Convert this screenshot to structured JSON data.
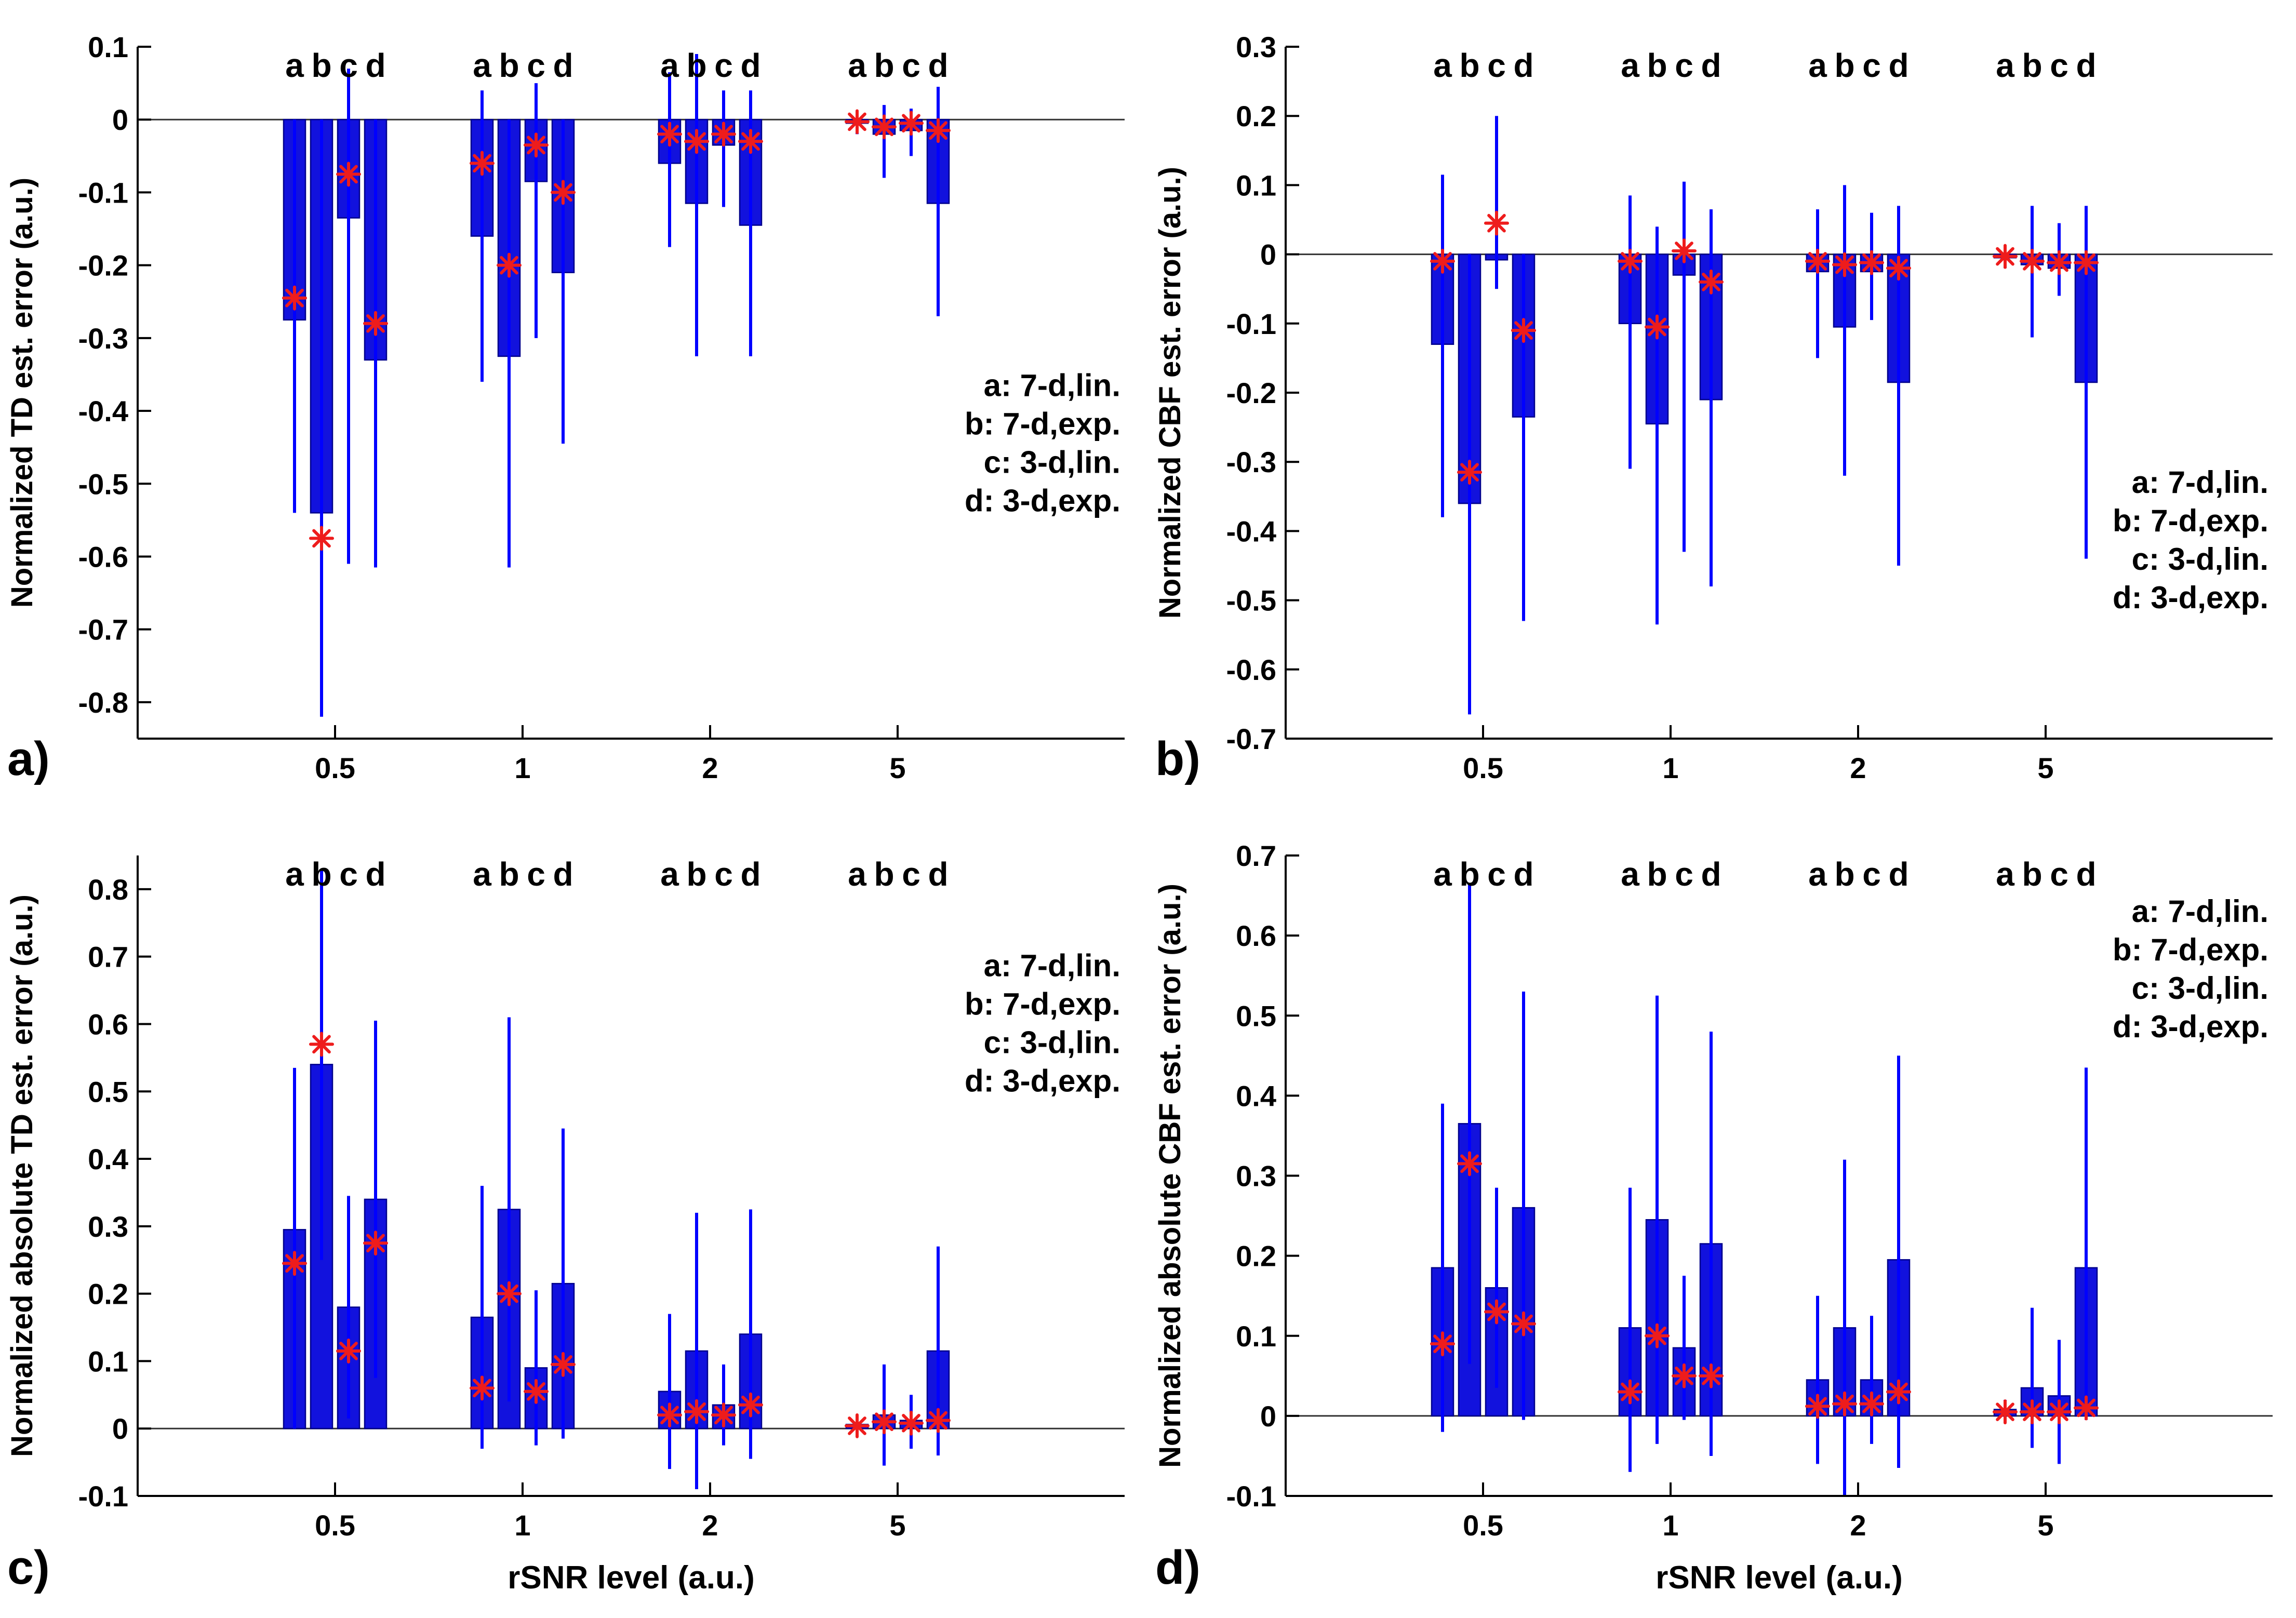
{
  "figure": {
    "background": "#ffffff"
  },
  "colors": {
    "bar_fill": "#1212dd",
    "bar_edge": "#00008b",
    "whisker": "#0000ff",
    "marker": "#ee1c1c",
    "axis": "#000000",
    "zero_line": "#333333"
  },
  "legend": {
    "items": [
      "a: 7-d,lin.",
      "b: 7-d,exp.",
      "c: 3-d,lin.",
      "d: 3-d,exp."
    ]
  },
  "chart_data": [
    {
      "panel_label": "a)",
      "type": "bar",
      "ylabel": "Normalized TD est. error (a.u.)",
      "xlabel": "",
      "ylim": [
        -0.85,
        0.1
      ],
      "yticks": [
        0.1,
        0,
        -0.1,
        -0.2,
        -0.3,
        -0.4,
        -0.5,
        -0.6,
        -0.7,
        -0.8
      ],
      "group_letters": [
        "a",
        "b",
        "c",
        "d"
      ],
      "legend_y_frac": 0.46,
      "bar_format": [
        "value",
        "whisker_low",
        "whisker_high",
        "marker"
      ],
      "groups": [
        {
          "label": "0.5",
          "bars": [
            [
              -0.275,
              -0.54,
              0.0,
              -0.245
            ],
            [
              -0.54,
              -0.82,
              0.0,
              -0.575
            ],
            [
              -0.135,
              -0.61,
              0.07,
              -0.075
            ],
            [
              -0.33,
              -0.615,
              0.0,
              -0.28
            ]
          ]
        },
        {
          "label": "1",
          "bars": [
            [
              -0.16,
              -0.36,
              0.04,
              -0.06
            ],
            [
              -0.325,
              -0.615,
              0.0,
              -0.2
            ],
            [
              -0.085,
              -0.3,
              0.05,
              -0.035
            ],
            [
              -0.21,
              -0.445,
              0.0,
              -0.1
            ]
          ]
        },
        {
          "label": "2",
          "bars": [
            [
              -0.06,
              -0.175,
              0.065,
              -0.02
            ],
            [
              -0.115,
              -0.325,
              0.09,
              -0.03
            ],
            [
              -0.035,
              -0.12,
              0.04,
              -0.02
            ],
            [
              -0.145,
              -0.325,
              0.04,
              -0.03
            ]
          ]
        },
        {
          "label": "5",
          "bars": [
            [
              -0.005,
              -0.02,
              0.008,
              -0.003
            ],
            [
              -0.02,
              -0.08,
              0.02,
              -0.01
            ],
            [
              -0.015,
              -0.05,
              0.015,
              -0.005
            ],
            [
              -0.115,
              -0.27,
              0.045,
              -0.015
            ]
          ]
        }
      ]
    },
    {
      "panel_label": "b)",
      "type": "bar",
      "ylabel": "Normalized CBF est. error (a.u.)",
      "xlabel": "",
      "ylim": [
        -0.7,
        0.3
      ],
      "yticks": [
        0.3,
        0.2,
        0.1,
        0,
        -0.1,
        -0.2,
        -0.3,
        -0.4,
        -0.5,
        -0.6,
        -0.7
      ],
      "group_letters": [
        "a",
        "b",
        "c",
        "d"
      ],
      "legend_y_frac": 0.6,
      "bar_format": [
        "value",
        "whisker_low",
        "whisker_high",
        "marker"
      ],
      "groups": [
        {
          "label": "0.5",
          "bars": [
            [
              -0.13,
              -0.38,
              0.115,
              -0.01
            ],
            [
              -0.36,
              -0.665,
              0.0,
              -0.315
            ],
            [
              -0.008,
              -0.05,
              0.2,
              0.045
            ],
            [
              -0.235,
              -0.53,
              0.0,
              -0.11
            ]
          ]
        },
        {
          "label": "1",
          "bars": [
            [
              -0.1,
              -0.31,
              0.085,
              -0.01
            ],
            [
              -0.245,
              -0.535,
              0.04,
              -0.105
            ],
            [
              -0.03,
              -0.43,
              0.105,
              0.005
            ],
            [
              -0.21,
              -0.48,
              0.065,
              -0.04
            ]
          ]
        },
        {
          "label": "2",
          "bars": [
            [
              -0.025,
              -0.15,
              0.065,
              -0.01
            ],
            [
              -0.105,
              -0.32,
              0.1,
              -0.015
            ],
            [
              -0.025,
              -0.095,
              0.06,
              -0.012
            ],
            [
              -0.185,
              -0.45,
              0.07,
              -0.02
            ]
          ]
        },
        {
          "label": "5",
          "bars": [
            [
              -0.005,
              -0.02,
              0.008,
              -0.003
            ],
            [
              -0.015,
              -0.12,
              0.07,
              -0.01
            ],
            [
              -0.02,
              -0.06,
              0.045,
              -0.012
            ],
            [
              -0.185,
              -0.44,
              0.07,
              -0.012
            ]
          ]
        }
      ]
    },
    {
      "panel_label": "c)",
      "type": "bar",
      "ylabel": "Normalized absolute TD est. error (a.u.)",
      "xlabel": "rSNR level (a.u.)",
      "ylim": [
        -0.1,
        0.85
      ],
      "yticks": [
        0.8,
        0.7,
        0.6,
        0.5,
        0.4,
        0.3,
        0.2,
        0.1,
        0,
        -0.1
      ],
      "group_letters": [
        "a",
        "b",
        "c",
        "d"
      ],
      "legend_y_frac": 0.14,
      "bar_format": [
        "value",
        "whisker_low",
        "whisker_high",
        "marker"
      ],
      "groups": [
        {
          "label": "0.5",
          "bars": [
            [
              0.295,
              0.0,
              0.535,
              0.245
            ],
            [
              0.54,
              0.25,
              0.83,
              0.57
            ],
            [
              0.18,
              0.015,
              0.345,
              0.115
            ],
            [
              0.34,
              0.075,
              0.605,
              0.275
            ]
          ]
        },
        {
          "label": "1",
          "bars": [
            [
              0.165,
              -0.03,
              0.36,
              0.06
            ],
            [
              0.325,
              0.04,
              0.61,
              0.2
            ],
            [
              0.09,
              -0.025,
              0.205,
              0.055
            ],
            [
              0.215,
              -0.015,
              0.445,
              0.095
            ]
          ]
        },
        {
          "label": "2",
          "bars": [
            [
              0.055,
              -0.06,
              0.17,
              0.02
            ],
            [
              0.115,
              -0.09,
              0.32,
              0.025
            ],
            [
              0.035,
              -0.025,
              0.095,
              0.02
            ],
            [
              0.14,
              -0.045,
              0.325,
              0.035
            ]
          ]
        },
        {
          "label": "5",
          "bars": [
            [
              0.006,
              -0.004,
              0.016,
              0.004
            ],
            [
              0.02,
              -0.055,
              0.095,
              0.01
            ],
            [
              0.012,
              -0.03,
              0.05,
              0.008
            ],
            [
              0.115,
              -0.04,
              0.27,
              0.012
            ]
          ]
        }
      ]
    },
    {
      "panel_label": "d)",
      "type": "bar",
      "ylabel": "Normalized absolute CBF est. error (a.u.)",
      "xlabel": "rSNR level (a.u.)",
      "ylim": [
        -0.1,
        0.7
      ],
      "yticks": [
        0.7,
        0.6,
        0.5,
        0.4,
        0.3,
        0.2,
        0.1,
        0,
        -0.1
      ],
      "group_letters": [
        "a",
        "b",
        "c",
        "d"
      ],
      "legend_y_frac": 0.055,
      "bar_format": [
        "value",
        "whisker_low",
        "whisker_high",
        "marker"
      ],
      "groups": [
        {
          "label": "0.5",
          "bars": [
            [
              0.185,
              -0.02,
              0.39,
              0.09
            ],
            [
              0.365,
              0.065,
              0.665,
              0.315
            ],
            [
              0.16,
              0.035,
              0.285,
              0.13
            ],
            [
              0.26,
              -0.005,
              0.53,
              0.115
            ]
          ]
        },
        {
          "label": "1",
          "bars": [
            [
              0.11,
              -0.07,
              0.285,
              0.03
            ],
            [
              0.245,
              -0.035,
              0.525,
              0.1
            ],
            [
              0.085,
              -0.005,
              0.175,
              0.05
            ],
            [
              0.215,
              -0.05,
              0.48,
              0.05
            ]
          ]
        },
        {
          "label": "2",
          "bars": [
            [
              0.045,
              -0.06,
              0.15,
              0.012
            ],
            [
              0.11,
              -0.1,
              0.32,
              0.015
            ],
            [
              0.045,
              -0.035,
              0.125,
              0.015
            ],
            [
              0.195,
              -0.065,
              0.45,
              0.03
            ]
          ]
        },
        {
          "label": "5",
          "bars": [
            [
              0.008,
              -0.005,
              0.02,
              0.005
            ],
            [
              0.035,
              -0.04,
              0.135,
              0.005
            ],
            [
              0.025,
              -0.06,
              0.095,
              0.005
            ],
            [
              0.185,
              -0.005,
              0.435,
              0.01
            ]
          ]
        }
      ]
    }
  ]
}
